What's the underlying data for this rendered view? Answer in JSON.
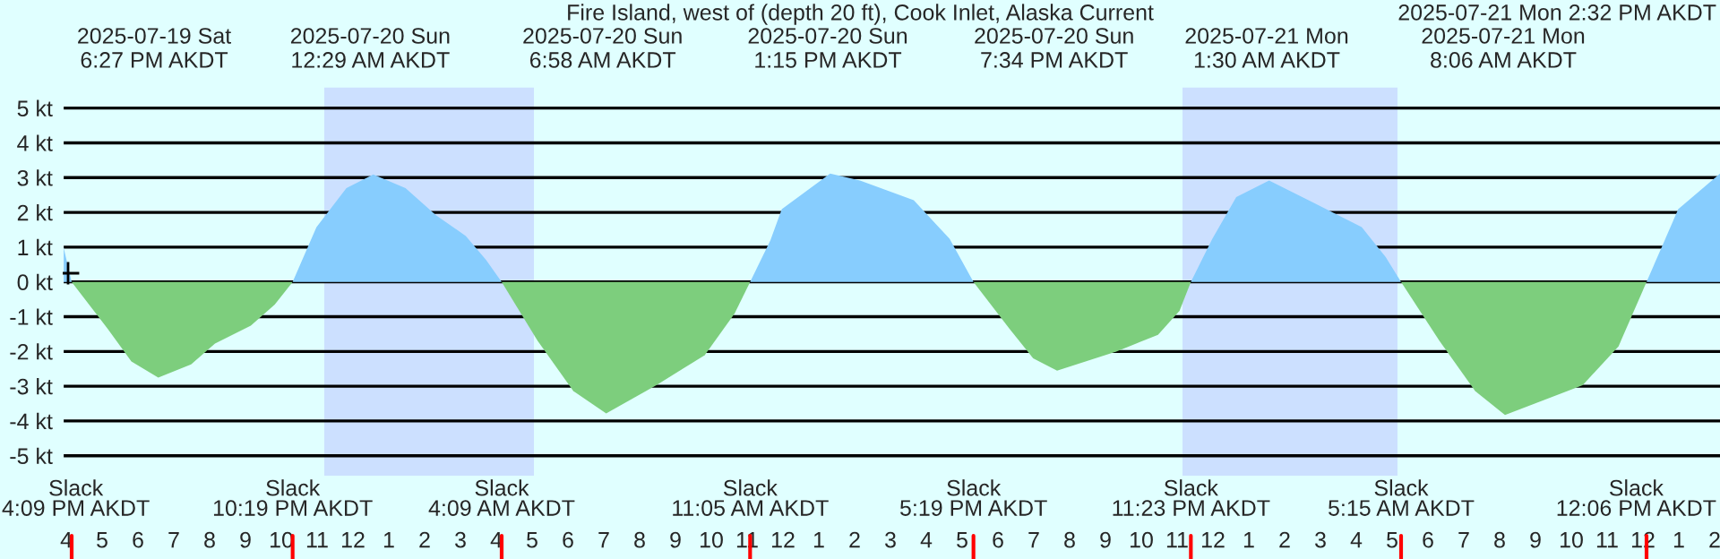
{
  "chart_data": {
    "type": "area",
    "title": "Fire Island, west of (depth 20 ft), Cook Inlet, Alaska Current",
    "xlim": [
      "2025-07-19T15:54",
      "2025-07-21T14:09"
    ],
    "ylim": [
      -5.6,
      5.6
    ],
    "yticks": [
      {
        "value": 5,
        "label": "5 kt"
      },
      {
        "value": 4,
        "label": "4 kt"
      },
      {
        "value": 3,
        "label": "3 kt"
      },
      {
        "value": 2,
        "label": "2 kt"
      },
      {
        "value": 1,
        "label": "1 kt"
      },
      {
        "value": 0,
        "label": "0 kt"
      },
      {
        "value": -1,
        "label": "-1 kt"
      },
      {
        "value": -2,
        "label": "-2 kt"
      },
      {
        "value": -3,
        "label": "-3 kt"
      },
      {
        "value": -4,
        "label": "-4 kt"
      },
      {
        "value": -5,
        "label": "-5 kt"
      }
    ],
    "xticks": [
      {
        "value": "2025-07-19T16:00",
        "label": "4"
      },
      {
        "value": "2025-07-19T17:00",
        "label": "5"
      },
      {
        "value": "2025-07-19T18:00",
        "label": "6"
      },
      {
        "value": "2025-07-19T19:00",
        "label": "7"
      },
      {
        "value": "2025-07-19T20:00",
        "label": "8"
      },
      {
        "value": "2025-07-19T21:00",
        "label": "9"
      },
      {
        "value": "2025-07-19T22:00",
        "label": "10"
      },
      {
        "value": "2025-07-19T23:00",
        "label": "11"
      },
      {
        "value": "2025-07-20T00:00",
        "label": "12"
      },
      {
        "value": "2025-07-20T01:00",
        "label": "1"
      },
      {
        "value": "2025-07-20T02:00",
        "label": "2"
      },
      {
        "value": "2025-07-20T03:00",
        "label": "3"
      },
      {
        "value": "2025-07-20T04:00",
        "label": "4"
      },
      {
        "value": "2025-07-20T05:00",
        "label": "5"
      },
      {
        "value": "2025-07-20T06:00",
        "label": "6"
      },
      {
        "value": "2025-07-20T07:00",
        "label": "7"
      },
      {
        "value": "2025-07-20T08:00",
        "label": "8"
      },
      {
        "value": "2025-07-20T09:00",
        "label": "9"
      },
      {
        "value": "2025-07-20T10:00",
        "label": "10"
      },
      {
        "value": "2025-07-20T11:00",
        "label": "11"
      },
      {
        "value": "2025-07-20T12:00",
        "label": "12"
      },
      {
        "value": "2025-07-20T13:00",
        "label": "1"
      },
      {
        "value": "2025-07-20T14:00",
        "label": "2"
      },
      {
        "value": "2025-07-20T15:00",
        "label": "3"
      },
      {
        "value": "2025-07-20T16:00",
        "label": "4"
      },
      {
        "value": "2025-07-20T17:00",
        "label": "5"
      },
      {
        "value": "2025-07-20T18:00",
        "label": "6"
      },
      {
        "value": "2025-07-20T19:00",
        "label": "7"
      },
      {
        "value": "2025-07-20T20:00",
        "label": "8"
      },
      {
        "value": "2025-07-20T21:00",
        "label": "9"
      },
      {
        "value": "2025-07-20T22:00",
        "label": "10"
      },
      {
        "value": "2025-07-20T23:00",
        "label": "11"
      },
      {
        "value": "2025-07-21T00:00",
        "label": "12"
      },
      {
        "value": "2025-07-21T01:00",
        "label": "1"
      },
      {
        "value": "2025-07-21T02:00",
        "label": "2"
      },
      {
        "value": "2025-07-21T03:00",
        "label": "3"
      },
      {
        "value": "2025-07-21T04:00",
        "label": "4"
      },
      {
        "value": "2025-07-21T05:00",
        "label": "5"
      },
      {
        "value": "2025-07-21T06:00",
        "label": "6"
      },
      {
        "value": "2025-07-21T07:00",
        "label": "7"
      },
      {
        "value": "2025-07-21T08:00",
        "label": "8"
      },
      {
        "value": "2025-07-21T09:00",
        "label": "9"
      },
      {
        "value": "2025-07-21T10:00",
        "label": "10"
      },
      {
        "value": "2025-07-21T11:00",
        "label": "11"
      },
      {
        "value": "2025-07-21T12:00",
        "label": "12"
      },
      {
        "value": "2025-07-21T13:00",
        "label": "1"
      },
      {
        "value": "2025-07-21T14:00",
        "label": "2"
      }
    ],
    "x2lim": [
      "2025-07-19T15:54",
      "2025-07-21T14:09"
    ],
    "x2ticks": [
      {
        "value": "2025-07-19T18:27",
        "label": "2025-07-19 Sat\n6:27 PM AKDT"
      },
      {
        "value": "2025-07-20T00:29",
        "label": "2025-07-20 Sun\n12:29 AM AKDT"
      },
      {
        "value": "2025-07-20T06:58",
        "label": "2025-07-20 Sun\n6:58 AM AKDT"
      },
      {
        "value": "2025-07-20T13:15",
        "label": "2025-07-20 Sun\n1:15 PM AKDT"
      },
      {
        "value": "2025-07-20T19:34",
        "label": "2025-07-20 Sun\n7:34 PM AKDT"
      },
      {
        "value": "2025-07-21T01:30",
        "label": "2025-07-21 Mon\n1:30 AM AKDT"
      },
      {
        "value": "2025-07-21T08:06",
        "label": "2025-07-21 Mon\n8:06 AM AKDT"
      }
    ],
    "grid": "y",
    "bands": [
      {
        "axis": "x",
        "from": "2025-07-19T23:12",
        "to": "2025-07-20T05:03",
        "color": "#cce0ff"
      },
      {
        "axis": "x",
        "from": "2025-07-20T23:09",
        "to": "2025-07-21T05:09",
        "color": "#cce0ff"
      }
    ],
    "ref_lines": [
      {
        "axis": "x",
        "value": "2025-07-19T16:09",
        "label": "Slack\n4:09 PM AKDT",
        "color": "#ff0000"
      },
      {
        "axis": "x",
        "value": "2025-07-19T22:19",
        "label": "Slack\n10:19 PM AKDT",
        "color": "#ff0000"
      },
      {
        "axis": "x",
        "value": "2025-07-20T04:09",
        "label": "Slack\n4:09 AM AKDT",
        "color": "#ff0000"
      },
      {
        "axis": "x",
        "value": "2025-07-20T11:05",
        "label": "Slack\n11:05 AM AKDT",
        "color": "#ff0000"
      },
      {
        "axis": "x",
        "value": "2025-07-20T17:19",
        "label": "Slack\n5:19 PM AKDT",
        "color": "#ff0000"
      },
      {
        "axis": "x",
        "value": "2025-07-20T23:23",
        "label": "Slack\n11:23 PM AKDT",
        "color": "#ff0000"
      },
      {
        "axis": "x",
        "value": "2025-07-21T05:15",
        "label": "Slack\n5:15 AM AKDT",
        "color": "#ff0000"
      },
      {
        "axis": "x",
        "value": "2025-07-21T12:06",
        "label": "Slack\n12:06 PM AKDT",
        "color": "#ff0000"
      }
    ],
    "series": [
      {
        "color": "#87cdfe",
        "x": [
          "2025-07-19T15:54",
          "2025-07-19T16:09",
          "2025-07-19T19:00",
          "2025-07-19T22:19",
          "2025-07-19T22:59",
          "2025-07-19T23:49",
          "2025-07-20T00:34",
          "2025-07-20T01:28",
          "2025-07-20T02:19",
          "2025-07-20T03:09",
          "2025-07-20T03:43",
          "2025-07-20T04:09",
          "2025-07-20T07:30",
          "2025-07-20T11:05",
          "2025-07-20T11:39",
          "2025-07-20T11:58",
          "2025-07-20T13:19",
          "2025-07-20T14:09",
          "2025-07-20T15:39",
          "2025-07-20T16:39",
          "2025-07-20T17:19",
          "2025-07-20T20:00",
          "2025-07-20T23:23",
          "2025-07-20T23:59",
          "2025-07-21T00:39",
          "2025-07-21T01:34",
          "2025-07-21T02:49",
          "2025-07-21T04:09",
          "2025-07-21T04:49",
          "2025-07-21T05:15",
          "2025-07-21T08:30",
          "2025-07-21T12:06",
          "2025-07-21T12:59",
          "2025-07-21T14:09"
        ],
        "values": [
          1.1,
          0,
          null,
          0,
          1.58,
          2.7,
          3.09,
          2.7,
          1.92,
          1.32,
          0.63,
          0,
          null,
          0,
          1.2,
          2.09,
          3.12,
          2.92,
          2.35,
          1.24,
          0,
          null,
          0,
          1.24,
          2.44,
          2.92,
          2.27,
          1.58,
          0.72,
          0,
          null,
          0,
          2.09,
          3.12
        ]
      },
      {
        "color": "#7dce7d",
        "x": [
          "2025-07-19T16:09",
          "2025-07-19T17:09",
          "2025-07-19T17:49",
          "2025-07-19T18:34",
          "2025-07-19T19:29",
          "2025-07-19T20:09",
          "2025-07-19T21:09",
          "2025-07-19T21:49",
          "2025-07-19T22:19",
          "2025-07-20T01:00",
          "2025-07-20T04:09",
          "2025-07-20T05:09",
          "2025-07-20T06:09",
          "2025-07-20T07:04",
          "2025-07-20T08:28",
          "2025-07-20T09:49",
          "2025-07-20T10:39",
          "2025-07-20T11:05",
          "2025-07-20T14:00",
          "2025-07-20T17:19",
          "2025-07-20T18:19",
          "2025-07-20T18:59",
          "2025-07-20T19:39",
          "2025-07-20T21:19",
          "2025-07-20T22:28",
          "2025-07-20T23:04",
          "2025-07-20T23:23",
          "2025-07-21T02:00",
          "2025-07-21T05:15",
          "2025-07-21T06:19",
          "2025-07-21T07:19",
          "2025-07-21T08:09",
          "2025-07-21T10:19",
          "2025-07-21T11:19",
          "2025-07-21T12:06"
        ],
        "values": [
          0,
          -1.34,
          -2.29,
          -2.75,
          -2.37,
          -1.77,
          -1.26,
          -0.65,
          0,
          null,
          0,
          -1.69,
          -3.14,
          -3.78,
          -2.97,
          -2.11,
          -0.91,
          0,
          null,
          0,
          -1.34,
          -2.2,
          -2.55,
          -2.0,
          -1.52,
          -0.83,
          0,
          null,
          0,
          -1.69,
          -3.14,
          -3.83,
          -2.97,
          -1.86,
          0
        ]
      },
      {
        "type": "scatter",
        "color": "#000000",
        "marker": "cross",
        "x": [
          "2025-07-19T16:03"
        ],
        "values": [
          0.25
        ]
      }
    ],
    "annotations": [
      "2025-07-21 Mon 2:32 PM AKDT"
    ]
  }
}
